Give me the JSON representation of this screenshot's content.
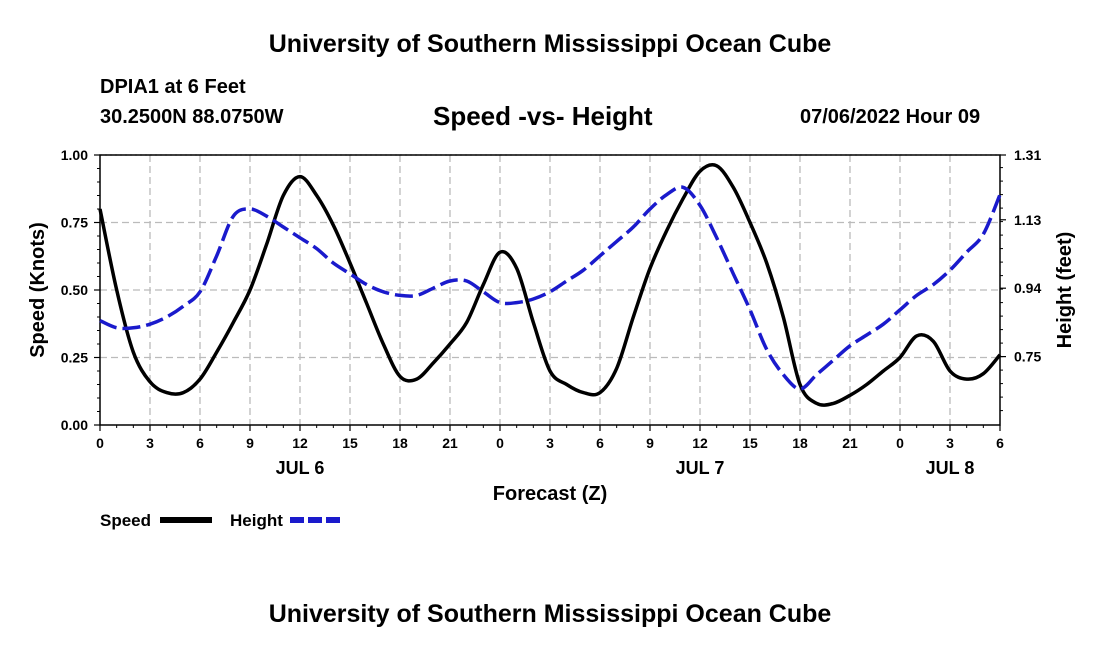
{
  "header": {
    "org_title": "University of Southern Mississippi Ocean Cube",
    "station": "DPIA1 at 6 Feet",
    "coords": "30.2500N  88.0750W",
    "issued": "07/06/2022 Hour 09",
    "footer_title": "University of Southern Mississippi Ocean Cube"
  },
  "colors": {
    "speed": "#000000",
    "height": "#1a1acc",
    "grid": "#bbbbbb"
  },
  "chart_data": {
    "type": "line",
    "title": "Speed -vs- Height",
    "xlabel": "Forecast (Z)",
    "ylabel": "Speed (Knots)",
    "y2label": "Height (feet)",
    "xlim": [
      0,
      54
    ],
    "ylim": [
      0,
      1
    ],
    "y2lim": [
      0.56,
      1.31
    ],
    "x_ticks": [
      0,
      3,
      6,
      9,
      12,
      15,
      18,
      21,
      24,
      27,
      30,
      33,
      36,
      39,
      42,
      45,
      48,
      51,
      54
    ],
    "x_tick_labels": [
      "0",
      "3",
      "6",
      "9",
      "12",
      "15",
      "18",
      "21",
      "0",
      "3",
      "6",
      "9",
      "12",
      "15",
      "18",
      "21",
      "0",
      "3",
      "6"
    ],
    "y_ticks": [
      0,
      0.25,
      0.5,
      0.75,
      1.0
    ],
    "y_tick_labels": [
      "0.00",
      "0.25",
      "0.50",
      "0.75",
      "1.00"
    ],
    "y2_ticks": [
      0.75,
      0.94,
      1.13,
      1.31
    ],
    "y2_tick_labels": [
      "0.75",
      "0.94",
      "1.13",
      "1.31"
    ],
    "day_labels": [
      {
        "x": 12,
        "label": "JUL 6"
      },
      {
        "x": 36,
        "label": "JUL 7"
      },
      {
        "x": 51,
        "label": "JUL 8"
      }
    ],
    "grid": true,
    "legend": [
      {
        "name": "Speed",
        "series": "speed"
      },
      {
        "name": "Height",
        "series": "height"
      }
    ],
    "series": [
      {
        "name": "Speed",
        "axis": "left",
        "style": "solid",
        "x": [
          0,
          1,
          2,
          3,
          4,
          5,
          6,
          7,
          8,
          9,
          10,
          11,
          12,
          13,
          14,
          15,
          16,
          17,
          18,
          19,
          20,
          21,
          22,
          23,
          24,
          25,
          26,
          27,
          28,
          29,
          30,
          31,
          32,
          33,
          34,
          35,
          36,
          37,
          38,
          39,
          40,
          41,
          42,
          43,
          44,
          45,
          46,
          47,
          48,
          49,
          50,
          51,
          52,
          53,
          54
        ],
        "values": [
          0.8,
          0.5,
          0.27,
          0.16,
          0.12,
          0.12,
          0.17,
          0.27,
          0.38,
          0.5,
          0.67,
          0.85,
          0.92,
          0.85,
          0.74,
          0.6,
          0.45,
          0.3,
          0.18,
          0.17,
          0.23,
          0.3,
          0.38,
          0.52,
          0.64,
          0.58,
          0.38,
          0.2,
          0.15,
          0.12,
          0.12,
          0.21,
          0.4,
          0.58,
          0.72,
          0.84,
          0.94,
          0.96,
          0.88,
          0.75,
          0.6,
          0.4,
          0.15,
          0.08,
          0.08,
          0.11,
          0.15,
          0.2,
          0.25,
          0.33,
          0.31,
          0.2,
          0.17,
          0.19,
          0.26
        ]
      },
      {
        "name": "Height",
        "axis": "right",
        "style": "dashed",
        "x": [
          0,
          1,
          2,
          3,
          4,
          5,
          6,
          7,
          8,
          9,
          10,
          11,
          12,
          13,
          14,
          15,
          16,
          17,
          18,
          19,
          20,
          21,
          22,
          23,
          24,
          25,
          26,
          27,
          28,
          29,
          30,
          31,
          32,
          33,
          34,
          35,
          36,
          37,
          38,
          39,
          40,
          41,
          42,
          43,
          44,
          45,
          46,
          47,
          48,
          49,
          50,
          51,
          52,
          53,
          54
        ],
        "values": [
          0.85,
          0.83,
          0.83,
          0.84,
          0.86,
          0.89,
          0.93,
          1.03,
          1.14,
          1.16,
          1.14,
          1.11,
          1.08,
          1.05,
          1.01,
          0.98,
          0.95,
          0.93,
          0.92,
          0.92,
          0.94,
          0.96,
          0.96,
          0.93,
          0.9,
          0.9,
          0.91,
          0.93,
          0.96,
          0.99,
          1.03,
          1.07,
          1.11,
          1.16,
          1.2,
          1.22,
          1.17,
          1.08,
          0.98,
          0.88,
          0.77,
          0.7,
          0.66,
          0.7,
          0.74,
          0.78,
          0.81,
          0.84,
          0.88,
          0.92,
          0.95,
          0.99,
          1.04,
          1.09,
          1.2
        ]
      }
    ]
  }
}
